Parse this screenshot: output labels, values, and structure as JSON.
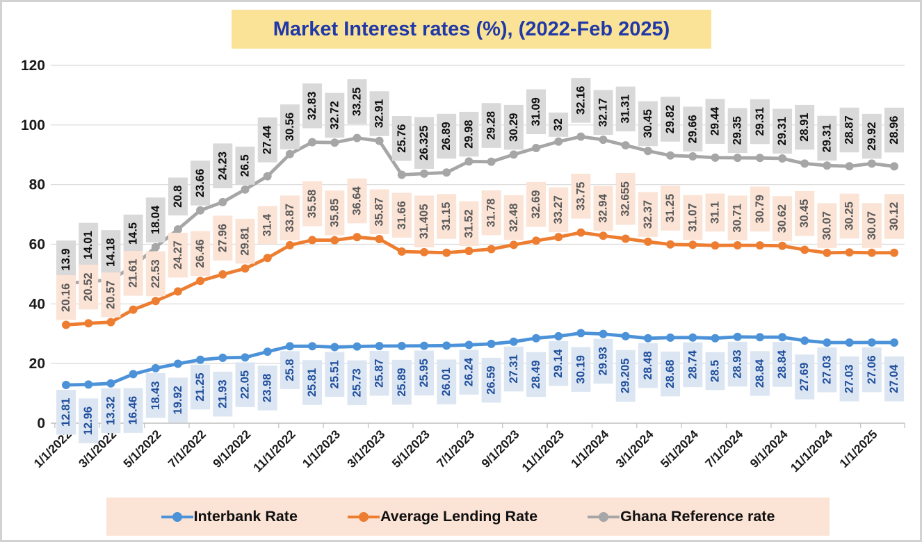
{
  "title": {
    "text": "Market Interest rates (%), (2022-Feb 2025)",
    "bg": "#FAE396",
    "color": "#2038A8"
  },
  "legend": {
    "bg": "#FBE3D5",
    "position": "bottom"
  },
  "chart_data": {
    "type": "line",
    "stacked": true,
    "grid": true,
    "ylim": [
      0,
      120
    ],
    "yticks": [
      0,
      20,
      40,
      60,
      80,
      100,
      120
    ],
    "x": [
      "1/1/2022",
      "2/1/2022",
      "3/1/2022",
      "4/1/2022",
      "5/1/2022",
      "6/1/2022",
      "7/1/2022",
      "8/1/2022",
      "9/1/2022",
      "10/1/2022",
      "11/1/2022",
      "12/1/2022",
      "1/1/2023",
      "2/1/2023",
      "3/1/2023",
      "4/1/2023",
      "5/1/2023",
      "6/1/2023",
      "7/1/2023",
      "8/1/2023",
      "9/1/2023",
      "10/1/2023",
      "11/1/2023",
      "12/1/2023",
      "1/1/2024",
      "2/1/2024",
      "3/1/2024",
      "4/1/2024",
      "5/1/2024",
      "6/1/2024",
      "7/1/2024",
      "8/1/2024",
      "9/1/2024",
      "10/1/2024",
      "11/1/2024",
      "12/1/2024",
      "1/1/2025",
      "2/1/2025"
    ],
    "x_tick_labels": [
      "1/1/2022",
      "3/1/2022",
      "5/1/2022",
      "7/1/2022",
      "9/1/2022",
      "11/1/2022",
      "1/1/2023",
      "3/1/2023",
      "5/1/2023",
      "7/1/2023",
      "9/1/2023",
      "11/1/2023",
      "1/1/2024",
      "3/1/2024",
      "5/1/2024",
      "7/1/2024",
      "9/1/2024",
      "11/1/2024",
      "1/1/2025"
    ],
    "series": [
      {
        "name": "Interbank Rate",
        "color": "#4B92D8",
        "label_bg": "#DCE6F2",
        "label_color": "#1F4E9C",
        "label_side": "below",
        "values": [
          12.81,
          12.96,
          13.32,
          16.46,
          18.43,
          19.92,
          21.25,
          21.93,
          22.05,
          23.98,
          25.8,
          25.81,
          25.51,
          25.73,
          25.87,
          25.89,
          25.95,
          26.01,
          26.24,
          26.59,
          27.31,
          28.49,
          29.14,
          30.19,
          29.93,
          29.205,
          28.48,
          28.68,
          28.74,
          28.5,
          28.93,
          28.84,
          28.84,
          27.69,
          27.03,
          27.03,
          27.06,
          27.04
        ]
      },
      {
        "name": "Average Lending Rate",
        "color": "#ED7D31",
        "label_bg": "#FBE3D5",
        "label_color": "#595959",
        "label_side": "above",
        "values": [
          20.16,
          20.52,
          20.57,
          21.61,
          22.53,
          24.27,
          26.46,
          27.96,
          29.81,
          31.4,
          33.87,
          35.58,
          35.85,
          36.64,
          35.87,
          31.66,
          31.405,
          31.15,
          31.52,
          31.78,
          32.48,
          32.69,
          33.27,
          33.75,
          32.94,
          32.655,
          32.37,
          31.25,
          31.07,
          31.1,
          30.71,
          30.79,
          30.62,
          30.45,
          30.07,
          30.25,
          30.07,
          30.12
        ]
      },
      {
        "name": "Ghana Reference rate",
        "color": "#A6A6A6",
        "label_bg": "#D9D9D9",
        "label_color": "#0D0D0D",
        "label_side": "above",
        "values": [
          13.9,
          14.01,
          14.18,
          14.5,
          18.04,
          20.8,
          23.66,
          24.23,
          26.5,
          27.44,
          30.56,
          32.83,
          32.72,
          33.25,
          32.91,
          25.76,
          26.325,
          26.89,
          29.98,
          29.28,
          30.29,
          31.09,
          32,
          32.16,
          32.17,
          31.31,
          30.45,
          29.82,
          29.66,
          29.44,
          29.35,
          29.31,
          29.31,
          28.91,
          29.31,
          28.87,
          29.92,
          28.96
        ]
      }
    ]
  }
}
